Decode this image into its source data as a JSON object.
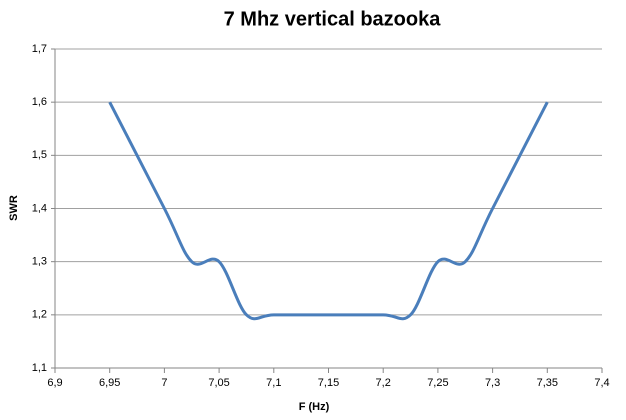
{
  "chart_data": {
    "type": "line",
    "title": "7 Mhz vertical bazooka",
    "x_label": "F (Hz)",
    "y_label": "SWR",
    "x": [
      6.95,
      7.0,
      7.025,
      7.05,
      7.075,
      7.1,
      7.15,
      7.2,
      7.225,
      7.25,
      7.275,
      7.3,
      7.35
    ],
    "series": [
      {
        "name": "SWR",
        "color": "#4a7ebb",
        "values": [
          1.6,
          1.4,
          1.3,
          1.3,
          1.2,
          1.2,
          1.2,
          1.2,
          1.2,
          1.3,
          1.3,
          1.4,
          1.6
        ]
      }
    ],
    "xlim": [
      6.9,
      7.4
    ],
    "xticks": [
      {
        "value": 6.9,
        "label": "6,9"
      },
      {
        "value": 6.95,
        "label": "6,95"
      },
      7,
      {
        "value": 7.05,
        "label": "7,05"
      },
      {
        "value": 7.1,
        "label": "7,1"
      },
      {
        "value": 7.15,
        "label": "7,15"
      },
      {
        "value": 7.2,
        "label": "7,2"
      },
      {
        "value": 7.25,
        "label": "7,25"
      },
      {
        "value": 7.3,
        "label": "7,3"
      },
      {
        "value": 7.35,
        "label": "7,35"
      },
      {
        "value": 7.4,
        "label": "7,4"
      }
    ],
    "ylim": [
      1.1,
      1.7
    ],
    "yticks": [
      {
        "value": 1.1,
        "label": "1,1"
      },
      {
        "value": 1.2,
        "label": "1,2"
      },
      {
        "value": 1.3,
        "label": "1,3"
      },
      {
        "value": 1.4,
        "label": "1,4"
      },
      {
        "value": 1.5,
        "label": "1,5"
      },
      {
        "value": 1.6,
        "label": "1,6"
      },
      {
        "value": 1.7,
        "label": "1,7"
      }
    ],
    "grid": true,
    "smooth": true
  }
}
